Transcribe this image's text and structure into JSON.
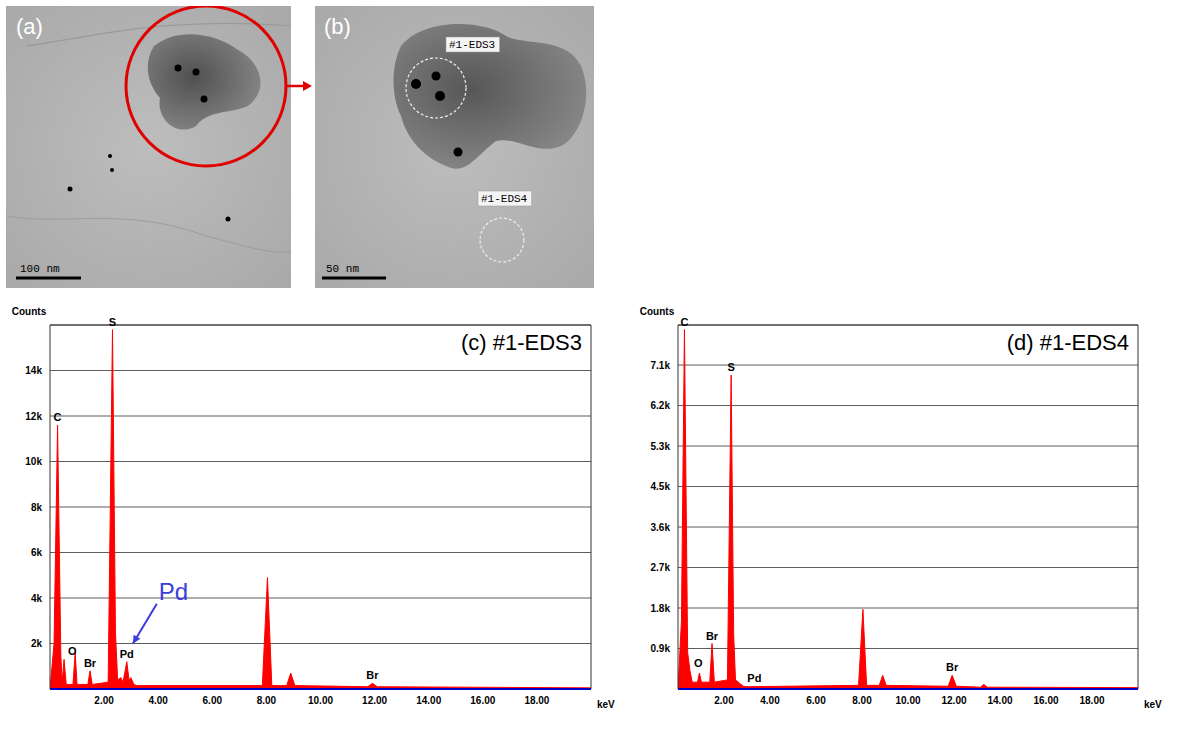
{
  "images": [
    {
      "panel": "(a)",
      "scale_bar": "100 nm"
    },
    {
      "panel": "(b)",
      "scale_bar": "50 nm",
      "regions": [
        "#1-EDS3",
        "#1-EDS4"
      ]
    }
  ],
  "chart_data": [
    {
      "type": "area",
      "title": "(c) #1-EDS3",
      "x_label": "keV",
      "y_label": "Counts",
      "color": "#ff0000",
      "x": [
        0,
        0.15,
        0.28,
        0.4,
        0.45,
        0.52,
        0.6,
        0.85,
        0.93,
        1.0,
        1.4,
        1.48,
        1.56,
        2.15,
        2.31,
        2.42,
        2.5,
        2.62,
        2.7,
        2.84,
        2.92,
        2.99,
        3.1,
        3.2,
        7.85,
        8.04,
        8.2,
        8.75,
        8.9,
        9.05,
        11.75,
        11.92,
        12.1,
        20
      ],
      "values": [
        0,
        2000,
        11600,
        1500,
        300,
        1300,
        200,
        200,
        1600,
        200,
        200,
        800,
        200,
        300,
        15800,
        2500,
        400,
        500,
        300,
        1200,
        400,
        500,
        200,
        150,
        150,
        4900,
        150,
        150,
        700,
        150,
        100,
        250,
        100,
        50
      ],
      "xlim": [
        0,
        20
      ],
      "xticks": [
        {
          "value": 2,
          "label": "2.00"
        },
        {
          "value": 4,
          "label": "4.00"
        },
        {
          "value": 6,
          "label": "6.00"
        },
        {
          "value": 8,
          "label": "8.00"
        },
        {
          "value": 10,
          "label": "10.00"
        },
        {
          "value": 12,
          "label": "12.00"
        },
        {
          "value": 14,
          "label": "14.00"
        },
        {
          "value": 16,
          "label": "16.00"
        },
        {
          "value": 18,
          "label": "18.00"
        }
      ],
      "ylim": [
        0,
        16000
      ],
      "yticks": [
        {
          "value": 2000,
          "label": "2k"
        },
        {
          "value": 4000,
          "label": "4k"
        },
        {
          "value": 6000,
          "label": "6k"
        },
        {
          "value": 8000,
          "label": "8k"
        },
        {
          "value": 10000,
          "label": "10k"
        },
        {
          "value": 12000,
          "label": "12k"
        },
        {
          "value": 14000,
          "label": "14k"
        }
      ],
      "grid": true,
      "peak_labels": [
        {
          "label": "C",
          "x": 0.28
        },
        {
          "label": "O",
          "x": 0.52
        },
        {
          "label": "Br",
          "x": 1.48
        },
        {
          "label": "S",
          "x": 2.31
        },
        {
          "label": "Pd",
          "x": 2.84
        },
        {
          "label": "Br",
          "x": 11.92
        }
      ],
      "annotations": [
        {
          "text": "Pd",
          "x": 2.84,
          "color": "#3c3cdc"
        }
      ]
    },
    {
      "type": "area",
      "title": "(d) #1-EDS4",
      "x_label": "keV",
      "y_label": "Counts",
      "color": "#ff0000",
      "x": [
        0,
        0.15,
        0.28,
        0.42,
        0.52,
        0.62,
        0.85,
        0.93,
        1.02,
        1.38,
        1.48,
        1.58,
        2.15,
        2.31,
        2.42,
        2.5,
        2.84,
        3.0,
        7.85,
        8.04,
        8.2,
        8.75,
        8.9,
        9.05,
        11.75,
        11.92,
        12.1,
        13.15,
        13.29,
        13.45,
        20
      ],
      "values": [
        0,
        1500,
        7900,
        800,
        400,
        150,
        150,
        350,
        150,
        150,
        1000,
        150,
        200,
        6900,
        1200,
        200,
        60,
        50,
        80,
        1750,
        80,
        80,
        300,
        80,
        60,
        300,
        60,
        40,
        100,
        40,
        30
      ],
      "xlim": [
        0,
        20
      ],
      "xticks": [
        {
          "value": 2,
          "label": "2.00"
        },
        {
          "value": 4,
          "label": "4.00"
        },
        {
          "value": 6,
          "label": "6.00"
        },
        {
          "value": 8,
          "label": "8.00"
        },
        {
          "value": 10,
          "label": "10.00"
        },
        {
          "value": 12,
          "label": "12.00"
        },
        {
          "value": 14,
          "label": "14.00"
        },
        {
          "value": 16,
          "label": "16.00"
        },
        {
          "value": 18,
          "label": "18.00"
        }
      ],
      "ylim": [
        0,
        8000
      ],
      "yticks": [
        {
          "value": 890,
          "label": "0.9k"
        },
        {
          "value": 1780,
          "label": "1.8k"
        },
        {
          "value": 2670,
          "label": "2.7k"
        },
        {
          "value": 3560,
          "label": "3.6k"
        },
        {
          "value": 4450,
          "label": "4.5k"
        },
        {
          "value": 5340,
          "label": "5.3k"
        },
        {
          "value": 6230,
          "label": "6.2k"
        },
        {
          "value": 7120,
          "label": "7.1k"
        }
      ],
      "grid": true,
      "peak_labels": [
        {
          "label": "C",
          "x": 0.28
        },
        {
          "label": "O",
          "x": 0.52
        },
        {
          "label": "Br",
          "x": 1.48
        },
        {
          "label": "S",
          "x": 2.31
        },
        {
          "label": "Pd",
          "x": 2.84
        },
        {
          "label": "Br",
          "x": 11.92
        }
      ]
    }
  ]
}
